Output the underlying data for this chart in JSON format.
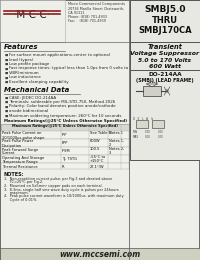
{
  "bg_color": "#efefea",
  "border_color": "#555555",
  "title_box": {
    "part_number_top": "SMBJ5.0",
    "part_number_thru": "THRU",
    "part_number_bot": "SMBJ170CA"
  },
  "subtitle_box": {
    "line1": "Transient",
    "line2": "Voltage Suppressor",
    "line3": "5.0 to 170 Volts",
    "line4": "600 Watt"
  },
  "package_box": {
    "line1": "DO-214AA",
    "line2": "(SMBJ) (LEAD FRAME)"
  },
  "logo_text": "·M·C·C·",
  "company_name": "Micro Commercial Components",
  "company_addr1": "20736 Marilla Street Chatsworth,",
  "company_addr2": "CA 91311",
  "company_phone": "Phone: (818) 701-4933",
  "company_fax": "Fax:    (818) 701-4939",
  "features_title": "Features",
  "features": [
    "For surface mount applications-center to optional",
    "lead (types)",
    "Low profile package",
    "Fast response times: typical less than 1.0ps from 0 volts to",
    "V(BR)minimum",
    "Low inductance",
    "Excellent clamping capability"
  ],
  "mech_title": "Mechanical Data",
  "mech_items": [
    "CASE: JEDEC DO-214AA",
    "Terminals: solderable per MIL-STD-750, Method 2026",
    "Polarity: Color band denotes positive anode/cathode",
    "anode bidirectional",
    "Maximum soldering temperature: 260°C for 10 seconds"
  ],
  "table_title": "Maximum Ratings(@25°C Unless Otherwise Specified)",
  "table_rows": [
    [
      "Peak Pulse Current on",
      "IPP",
      "See Table II",
      "Notes 1"
    ],
    [
      "10/1000μs pulse shape",
      "",
      "",
      ""
    ],
    [
      "Peak Pulse Power",
      "PPP",
      "600W",
      "Notes 1,"
    ],
    [
      "Dissipation",
      "",
      "",
      "2"
    ],
    [
      "Peak Forward Surge",
      "IFSM",
      "100.5",
      "Notes 2,"
    ],
    [
      "Current",
      "",
      "",
      "3"
    ],
    [
      "Operating And Storage",
      "TJ, TSTG",
      "-55°C to",
      ""
    ],
    [
      "Temperature Range",
      "",
      "+150°C",
      ""
    ],
    [
      "Thermal Resistance",
      "R",
      "27.1°/W",
      ""
    ]
  ],
  "notes_title": "NOTES:",
  "notes": [
    "1.  Non-repetitive current pulse, per Fig.3 and derated above",
    "     TC=25°C per Fig.2.",
    "2.  Mounted on 5x5mm² copper pads on each terminal.",
    "3.  8.3ms, single half sine wave duty cycle is pulses per 24hours",
    "     maximum.",
    "4.  Peak pulse current waveform is 10/1000us, with maximum duty",
    "     Cycle of 0.01%."
  ],
  "website": "www.mccsemi.com",
  "accent_color": "#8b2020",
  "white": "#ffffff",
  "light_gray": "#e8e8e2",
  "table_bg": "#f2f2ec",
  "table_head_bg": "#d8d8d0"
}
